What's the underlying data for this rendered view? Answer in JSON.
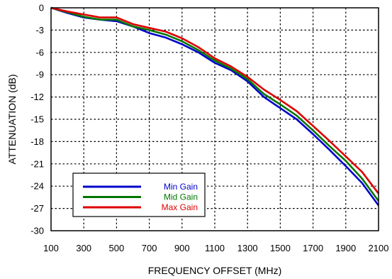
{
  "chart_data": {
    "type": "line",
    "xlabel": "FREQUENCY OFFSET (MHz)",
    "ylabel": "ATTENUATION (dB)",
    "xlim": [
      100,
      2100
    ],
    "ylim": [
      -30,
      0
    ],
    "x_ticks": [
      100,
      300,
      500,
      700,
      900,
      1100,
      1300,
      1500,
      1700,
      1900,
      2100
    ],
    "x_tick_labels": [
      "100",
      "300",
      "500",
      "700",
      "900",
      "1100",
      "1300",
      "1500",
      "1700",
      "1900",
      "2100"
    ],
    "y_ticks": [
      0,
      -3,
      -6,
      -9,
      -12,
      -15,
      -18,
      -21,
      -24,
      -27,
      -30
    ],
    "y_tick_labels": [
      "0",
      "-3",
      "-6",
      "-9",
      "-12",
      "-15",
      "-18",
      "-21",
      "-24",
      "-27",
      "-30"
    ],
    "grid": true,
    "legend_position": "bottom-left",
    "x": [
      100,
      200,
      300,
      400,
      500,
      600,
      700,
      800,
      900,
      1000,
      1100,
      1200,
      1300,
      1400,
      1500,
      1600,
      1700,
      1800,
      1900,
      2000,
      2100
    ],
    "series": [
      {
        "name": "Min Gain",
        "color": "#0000cc",
        "values": [
          0,
          -0.7,
          -1.3,
          -1.6,
          -1.8,
          -2.5,
          -3.4,
          -4.0,
          -4.9,
          -6.0,
          -7.4,
          -8.4,
          -9.9,
          -12.0,
          -13.5,
          -15.0,
          -17.0,
          -19.1,
          -21.3,
          -23.6,
          -26.6
        ]
      },
      {
        "name": "Mid Gain",
        "color": "#007700",
        "values": [
          0,
          -0.6,
          -1.2,
          -1.6,
          -1.6,
          -2.5,
          -3.0,
          -3.6,
          -4.5,
          -5.7,
          -7.1,
          -8.2,
          -9.6,
          -11.6,
          -13.0,
          -14.5,
          -16.5,
          -18.6,
          -20.6,
          -23.0,
          -26.0
        ]
      },
      {
        "name": "Max Gain",
        "color": "#dd0000",
        "values": [
          0,
          -0.5,
          -0.9,
          -1.3,
          -1.3,
          -2.2,
          -2.7,
          -3.2,
          -4.1,
          -5.3,
          -6.8,
          -7.9,
          -9.3,
          -11.0,
          -12.4,
          -13.9,
          -15.9,
          -17.9,
          -20.0,
          -22.1,
          -25.0
        ]
      }
    ]
  }
}
